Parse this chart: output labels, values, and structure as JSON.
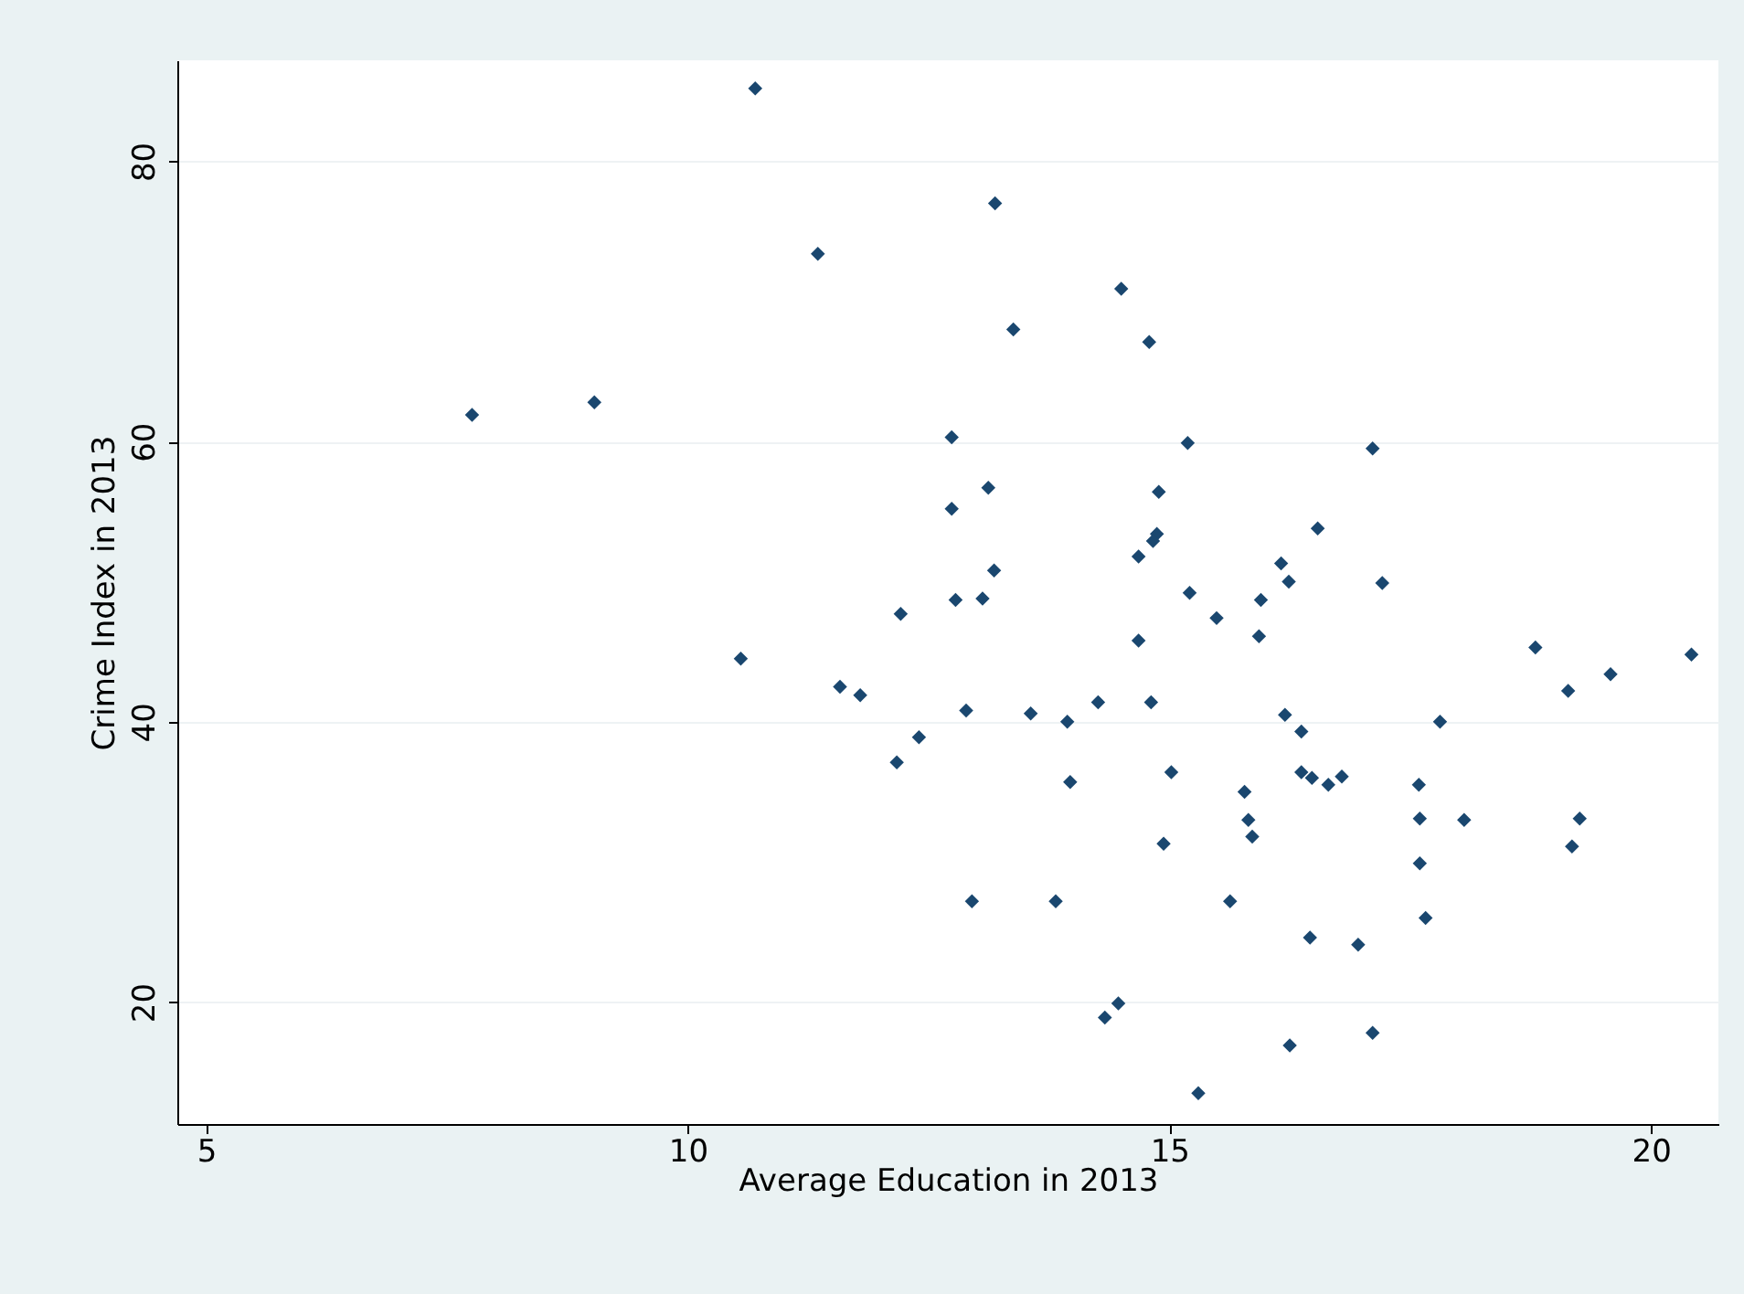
{
  "chart_data": {
    "type": "scatter",
    "xlabel": "Average Education in 2013",
    "ylabel": "Crime Index in 2013",
    "x": [
      7.76,
      9.03,
      10.7,
      11.35,
      13.19,
      13.38,
      14.5,
      14.79,
      12.74,
      15.19,
      17.11,
      13.12,
      12.74,
      14.89,
      16.54,
      13.18,
      14.87,
      14.83,
      14.68,
      16.16,
      16.24,
      17.21,
      15.21,
      13.06,
      12.78,
      12.21,
      15.49,
      15.95,
      15.93,
      14.68,
      10.55,
      18.8,
      20.42,
      19.58,
      19.14,
      11.58,
      11.79,
      14.81,
      14.26,
      12.89,
      13.56,
      13.94,
      16.2,
      16.37,
      17.81,
      12.4,
      12.17,
      15.02,
      13.97,
      16.37,
      16.48,
      16.65,
      16.79,
      17.59,
      15.78,
      15.82,
      15.86,
      14.94,
      17.6,
      18.06,
      19.26,
      19.18,
      17.6,
      12.95,
      13.82,
      15.63,
      17.66,
      16.46,
      16.96,
      14.47,
      14.33,
      17.11,
      16.25,
      15.3
    ],
    "series": [
      {
        "color": "#1a476f",
        "values": [
          61.9,
          62.8,
          85.2,
          73.4,
          77.0,
          68.0,
          70.9,
          67.1,
          60.3,
          59.9,
          59.5,
          56.7,
          55.2,
          56.4,
          53.8,
          50.8,
          53.4,
          52.9,
          51.8,
          51.3,
          50.0,
          49.9,
          49.2,
          48.8,
          48.7,
          47.7,
          47.4,
          48.7,
          46.1,
          45.8,
          44.5,
          45.3,
          44.8,
          43.4,
          42.2,
          42.5,
          41.9,
          41.4,
          41.4,
          40.8,
          40.6,
          40.0,
          40.5,
          39.3,
          40.0,
          38.9,
          37.1,
          36.4,
          35.7,
          36.4,
          36.0,
          35.5,
          36.1,
          35.5,
          35.0,
          33.0,
          31.8,
          31.3,
          33.1,
          33.0,
          33.1,
          31.1,
          29.9,
          27.2,
          27.2,
          27.2,
          26.0,
          24.6,
          24.1,
          19.9,
          18.9,
          17.8,
          16.9,
          13.5
        ]
      }
    ],
    "xlim": [
      4.7,
      20.7
    ],
    "ylim": [
      11.3,
      87.2
    ],
    "xticks": [
      5,
      10,
      15,
      20
    ],
    "yticks": [
      20,
      40,
      60,
      80
    ],
    "grid": "y",
    "marker": "diamond"
  }
}
